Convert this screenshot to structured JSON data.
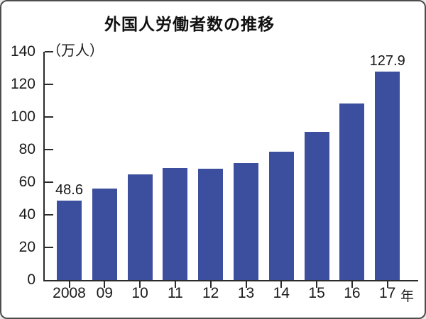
{
  "window": {
    "background_color": "#ffffff",
    "frame_border_color": "#4d4d4d"
  },
  "chart_data": {
    "type": "bar",
    "title": "外国人労働者数の推移",
    "unit_label": "（万人）",
    "x_axis_suffix": "年",
    "categories": [
      "2008",
      "09",
      "10",
      "11",
      "12",
      "13",
      "14",
      "15",
      "16",
      "17"
    ],
    "values": [
      48.6,
      56.3,
      64.9,
      68.6,
      68.2,
      71.8,
      78.8,
      90.8,
      108.4,
      127.9
    ],
    "annotated_indices": [
      0,
      9
    ],
    "annotated_labels": [
      "48.6",
      "127.9"
    ],
    "ylim": [
      0,
      140
    ],
    "yticks": [
      0,
      20,
      40,
      60,
      80,
      100,
      120,
      140
    ],
    "bar_color": "#3C4F9E",
    "axis_color": "#2b2b2b",
    "grid": false,
    "legend_position": "none"
  }
}
